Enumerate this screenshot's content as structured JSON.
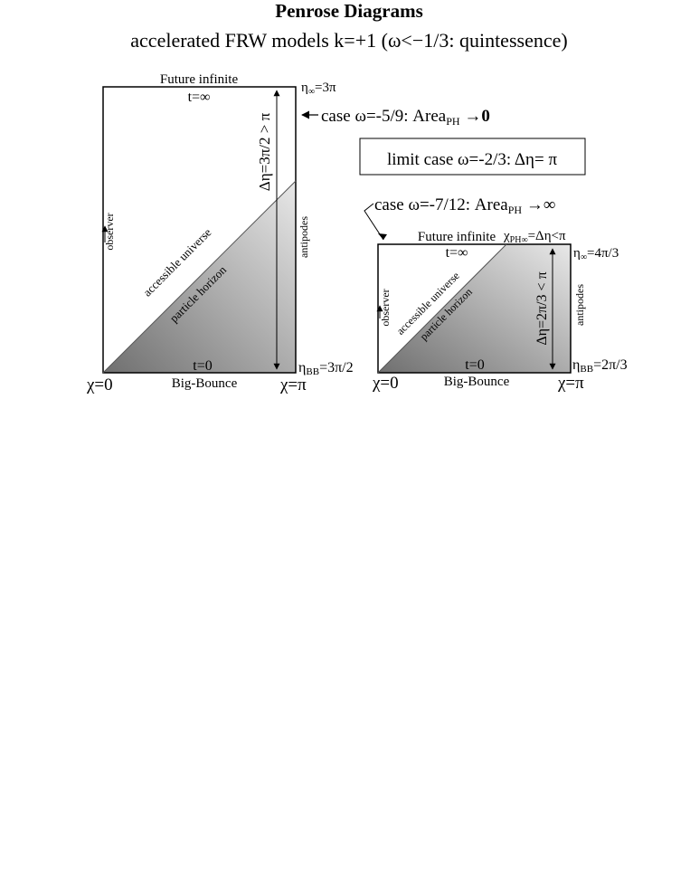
{
  "title": "Penrose Diagrams",
  "subtitle": "accelerated FRW models k=+1 (ω<−1/3: quintessence)",
  "limit_box": {
    "text": "limit case ω=-2/3: Δη= π"
  },
  "left": {
    "top_label": "Future infinite",
    "t_inf": "t=∞",
    "eta_inf": "η∞=3π",
    "case_label": "←case ω=-5/9: Areaₚₕ →0",
    "case_text": "case ω=-5/9: Area",
    "case_sub": "PH",
    "case_tail": " →0",
    "delta_eta": "Δη=3π/2 > π",
    "observer": "observer",
    "antipodes": "antipodes",
    "accessible": "accessible universe",
    "horizon": "particle horizon",
    "t0": "t=0",
    "eta_bb": "ηBB=3π/2",
    "eta_bb_main": "η",
    "eta_bb_sub": "BB",
    "eta_bb_tail": "=3π/2",
    "eta_inf_main": "η",
    "eta_inf_sub": "∞",
    "eta_inf_tail": "=3π",
    "chi0": "χ=0",
    "big_bounce": "Big-Bounce",
    "chipi": "χ=π"
  },
  "right": {
    "case_text": "case ω=-7/12: Area",
    "case_sub": "PH",
    "case_tail": " →∞",
    "top_label": "Future infinite",
    "t_inf": "t=∞",
    "chi_ph_main": "χ",
    "chi_ph_sub": "PH∞",
    "chi_ph_tail": "=Δη<π",
    "eta_inf_main": "η",
    "eta_inf_sub": "∞",
    "eta_inf_tail": "=4π/3",
    "delta_eta": "Δη=2π/3 < π",
    "observer": "observer",
    "antipodes": "antipodes",
    "accessible": "accessible universe",
    "horizon": "particle horizon",
    "t0": "t=0",
    "eta_bb_main": "η",
    "eta_bb_sub": "BB",
    "eta_bb_tail": "=2π/3",
    "chi0": "χ=0",
    "big_bounce": "Big-Bounce",
    "chipi": "χ=π"
  }
}
